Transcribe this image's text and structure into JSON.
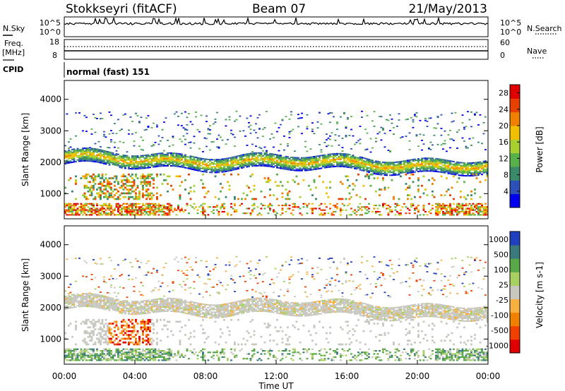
{
  "header": {
    "station": "Stokkseyri (fitACF)",
    "beam": "Beam 07",
    "date": "21/May/2013"
  },
  "noise_panel": {
    "left_label": "N.Sky",
    "right_label": "N.Search",
    "left_ticks": [
      "10^5",
      "10^0"
    ],
    "right_ticks": [
      "10^5",
      "10^0"
    ]
  },
  "freq_panel": {
    "left_label_1": "Freq.",
    "left_label_2": "[MHz]",
    "right_label": "Nave",
    "left_ticks": [
      "18",
      "8"
    ],
    "right_ticks": [
      "60",
      "0"
    ]
  },
  "cpid": {
    "label": "CPID",
    "value": "normal (fast) 151"
  },
  "xaxis": {
    "ticks": [
      "00:00",
      "04:00",
      "08:00",
      "12:00",
      "16:00",
      "20:00",
      "00:00"
    ],
    "label": "Time UT"
  },
  "colors": {
    "power_scale": [
      "#0000ee",
      "#2d4fb8",
      "#3a8a6a",
      "#58b04a",
      "#a8d030",
      "#f0c000",
      "#f08000",
      "#e84000",
      "#e00000"
    ],
    "velocity_scale": [
      "#e00000",
      "#f04000",
      "#f08000",
      "#f8b040",
      "#c8c8c0",
      "#a8d060",
      "#58a848",
      "#3a7a7a",
      "#2040c0"
    ]
  },
  "chart_data": [
    {
      "type": "heatmap",
      "title": "",
      "ylabel": "Slant Range [km]",
      "ylim": [
        200,
        4600
      ],
      "yticks": [
        1000,
        2000,
        3000,
        4000
      ],
      "xticks_hours": [
        0,
        4,
        8,
        12,
        16,
        20,
        24
      ],
      "colorbar": {
        "label": "Power [dB]",
        "ticks": [
          4,
          8,
          12,
          16,
          20,
          24,
          28
        ],
        "range": [
          0,
          30
        ]
      },
      "features": [
        {
          "name": "main_band",
          "km_start": 2100,
          "km_end": 1850,
          "power_db": 12
        },
        {
          "name": "near_range_echoes",
          "km_range": [
            300,
            700
          ],
          "power_db": 22
        }
      ]
    },
    {
      "type": "heatmap",
      "title": "",
      "ylabel": "Slant Range [km]",
      "ylim": [
        200,
        4600
      ],
      "yticks": [
        1000,
        2000,
        3000,
        4000
      ],
      "xticks_hours": [
        0,
        4,
        8,
        12,
        16,
        20,
        24
      ],
      "colorbar": {
        "label": "Velocity [m s-1]",
        "ticks": [
          "1000",
          "500",
          "100",
          "25",
          "-25",
          "-100",
          "-500",
          "-1000"
        ]
      },
      "features": [
        {
          "name": "ground_scatter_band",
          "km_range": [
            1800,
            2300
          ],
          "velocity": 0
        },
        {
          "name": "near_range_flow",
          "km_range": [
            300,
            700
          ],
          "velocity": 100
        }
      ]
    }
  ]
}
